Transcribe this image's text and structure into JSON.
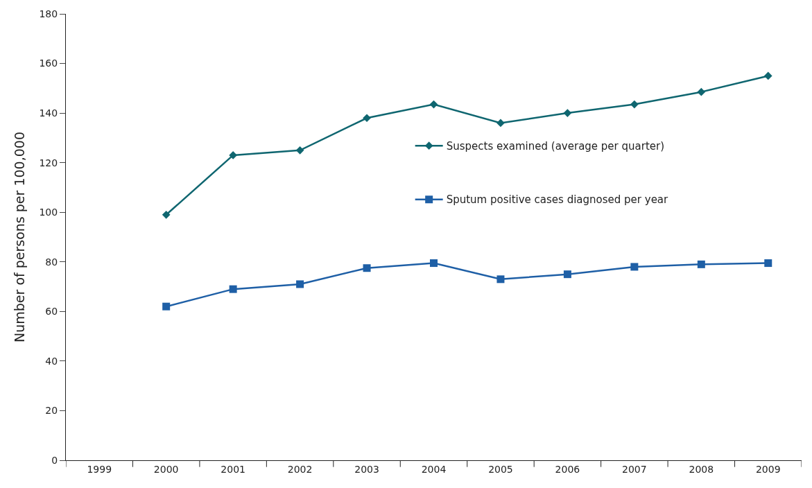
{
  "chart_data": {
    "type": "line",
    "ylabel": "Number of persons per 100,000",
    "categories": [
      "1999",
      "2000",
      "2001",
      "2002",
      "2003",
      "2004",
      "2005",
      "2006",
      "2007",
      "2008",
      "2009"
    ],
    "series": [
      {
        "name": "Suspects examined (average per quarter)",
        "color": "#0f6670",
        "marker": "diamond",
        "values": [
          null,
          99,
          123,
          125,
          138,
          143.5,
          136,
          140,
          143.5,
          148.5,
          155
        ]
      },
      {
        "name": "Sputum positive cases diagnosed per year",
        "color": "#1e5fa6",
        "marker": "square",
        "values": [
          null,
          62,
          69,
          71,
          77.5,
          79.5,
          73,
          75,
          78,
          79,
          79.5
        ]
      }
    ],
    "ylim": [
      0,
      180
    ],
    "yticks": [
      0,
      20,
      40,
      60,
      80,
      100,
      120,
      140,
      160,
      180
    ],
    "legend": "top right"
  }
}
